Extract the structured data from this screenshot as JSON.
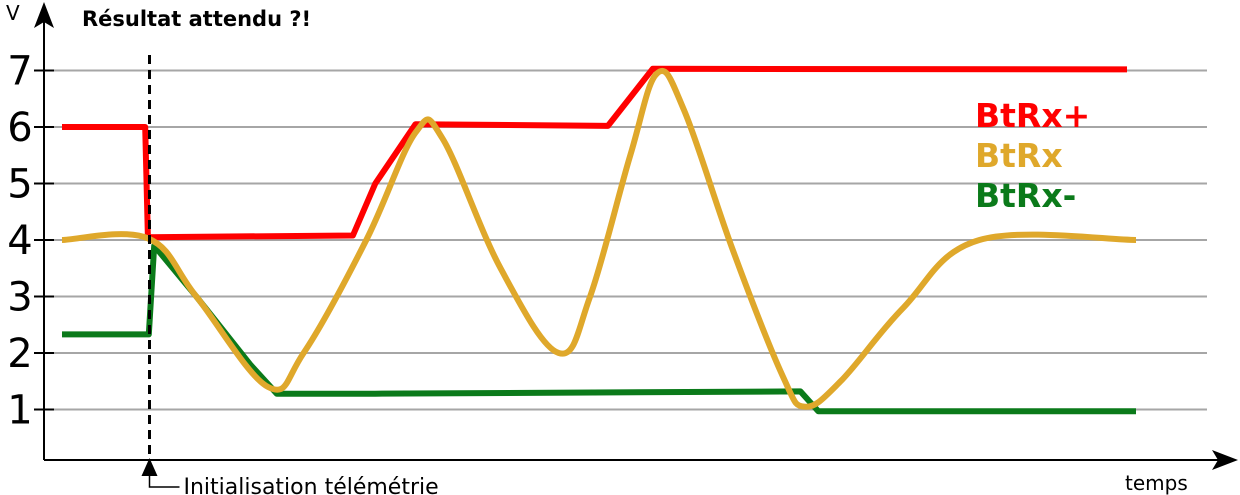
{
  "chart_data": {
    "type": "line",
    "title": "Résultat attendu  ?!",
    "ylabel": "V",
    "xlabel": "temps",
    "ylim": [
      0,
      8
    ],
    "yticks": [
      1,
      2,
      3,
      4,
      5,
      6,
      7
    ],
    "grid": true,
    "legend_position": "right",
    "annotation": {
      "text": "Initialisation télémétrie",
      "x": 1.0
    },
    "series": [
      {
        "name": "BtRx+",
        "color": "#ff0000",
        "points": [
          [
            0.0,
            6.0
          ],
          [
            0.93,
            6.0
          ],
          [
            0.96,
            4.05
          ],
          [
            3.25,
            4.08
          ],
          [
            3.5,
            5.0
          ],
          [
            3.95,
            6.05
          ],
          [
            6.1,
            6.02
          ],
          [
            6.6,
            7.03
          ],
          [
            11.9,
            7.02
          ]
        ]
      },
      {
        "name": "BtRx",
        "color": "#dfa82b",
        "points": [
          [
            0.0,
            4.0
          ],
          [
            0.96,
            4.03
          ],
          [
            1.5,
            3.0
          ],
          [
            2.3,
            1.4
          ],
          [
            2.7,
            2.0
          ],
          [
            3.4,
            4.0
          ],
          [
            3.95,
            5.9
          ],
          [
            4.25,
            5.8
          ],
          [
            4.9,
            3.5
          ],
          [
            5.55,
            2.0
          ],
          [
            5.9,
            3.0
          ],
          [
            6.35,
            5.5
          ],
          [
            6.65,
            6.95
          ],
          [
            6.95,
            6.3
          ],
          [
            7.5,
            3.8
          ],
          [
            8.05,
            1.6
          ],
          [
            8.3,
            1.05
          ],
          [
            8.7,
            1.5
          ],
          [
            9.4,
            2.8
          ],
          [
            10.25,
            4.0
          ],
          [
            12.0,
            4.0
          ]
        ]
      },
      {
        "name": "BtRx-",
        "color": "#0b7a1a",
        "points": [
          [
            0.0,
            2.33
          ],
          [
            0.97,
            2.33
          ],
          [
            1.03,
            3.9
          ],
          [
            1.5,
            3.0
          ],
          [
            2.1,
            1.8
          ],
          [
            2.4,
            1.28
          ],
          [
            3.5,
            1.28
          ],
          [
            8.25,
            1.32
          ],
          [
            8.45,
            0.97
          ],
          [
            12.0,
            0.97
          ]
        ]
      }
    ]
  }
}
